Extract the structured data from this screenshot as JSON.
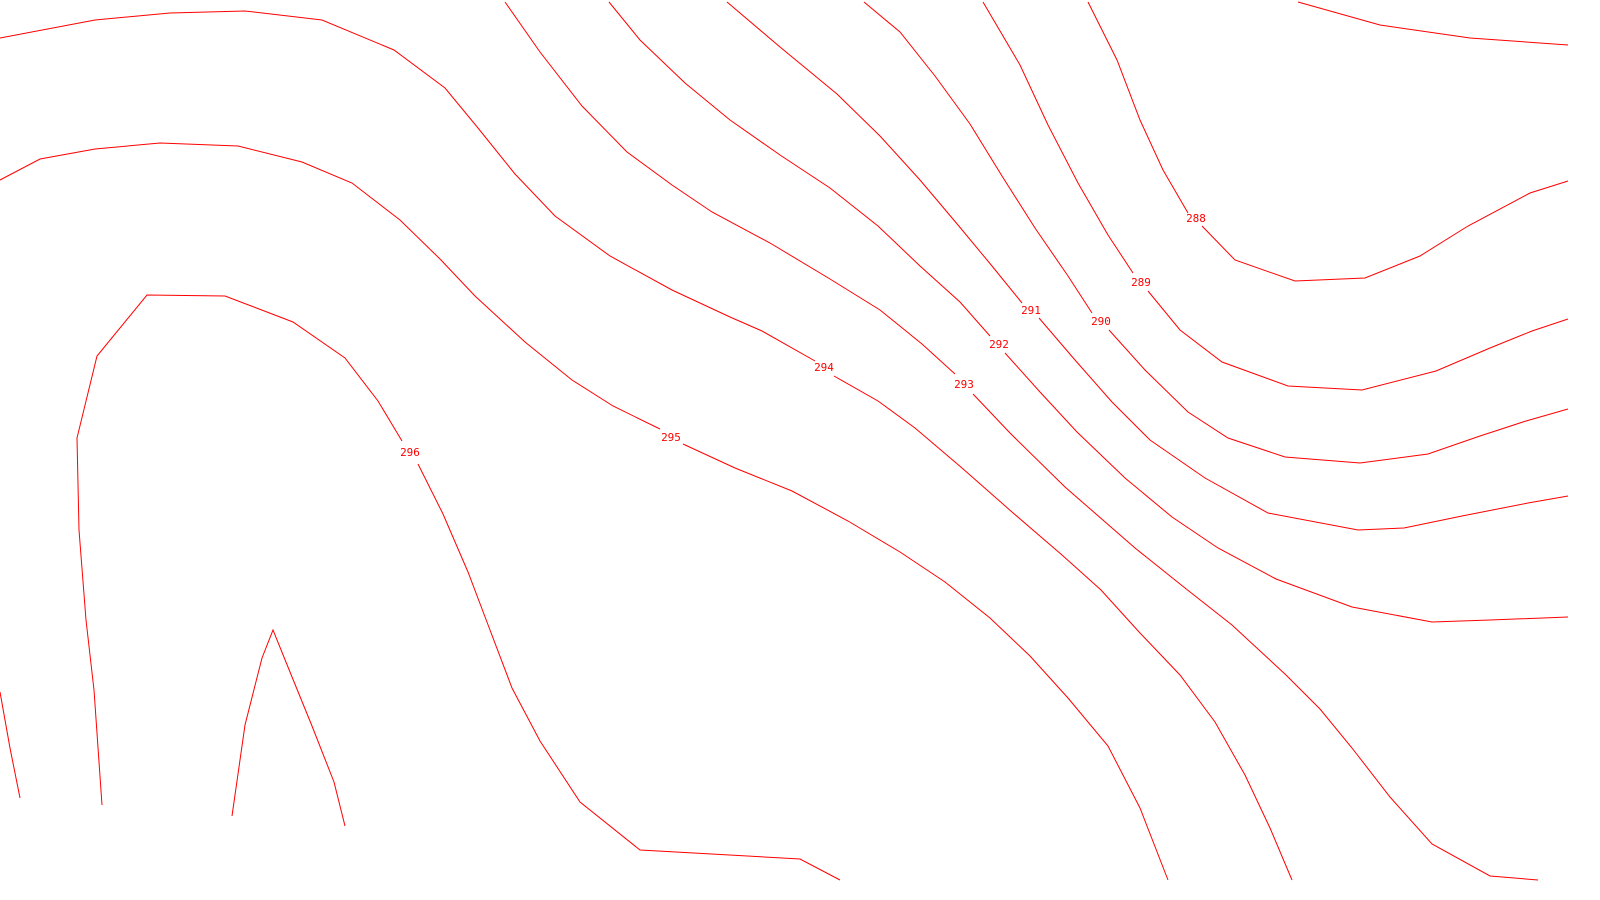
{
  "map": {
    "background_color": "#ffffff",
    "line_color": "#ff0000",
    "contours": [
      {
        "id": "288",
        "label": "288"
      },
      {
        "id": "289",
        "label": "289"
      },
      {
        "id": "290",
        "label": "290"
      },
      {
        "id": "291",
        "label": "291"
      },
      {
        "id": "292",
        "label": "292"
      },
      {
        "id": "293",
        "label": "293"
      },
      {
        "id": "294",
        "label": "294"
      },
      {
        "id": "295",
        "label": "295"
      },
      {
        "id": "296",
        "label": "296"
      }
    ]
  }
}
